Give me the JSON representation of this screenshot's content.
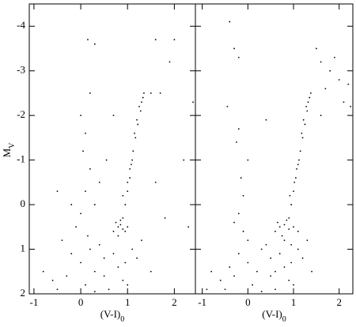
{
  "chart_data": [
    {
      "type": "scatter",
      "color": "#000000",
      "x_label": "(V-I)",
      "x_label_sub": "0",
      "y_label": "M",
      "y_label_sub": "V",
      "xlim": [
        -1.1,
        2.45
      ],
      "ylim": [
        2,
        -4.5
      ],
      "xticks": [
        -1,
        0,
        1,
        2
      ],
      "yticks": [
        -4,
        -3,
        -2,
        -1,
        0,
        1,
        2
      ],
      "show_ytick_labels": true,
      "x": [
        0.95,
        1.0,
        1.05,
        1.08,
        1.12,
        1.17,
        1.22,
        1.28,
        1.33,
        1.25,
        1.15,
        1.0,
        0.9,
        1.1,
        1.05,
        1.2,
        1.3,
        1.35,
        0.8,
        0.85,
        0.9,
        0.75,
        0.95,
        0.85,
        0.7,
        1.0,
        0.8,
        0.9,
        0.5,
        0.3,
        0.8,
        1.0,
        0.6,
        0.2,
        0.0,
        -0.3,
        -0.6,
        -0.8,
        0.4,
        1.2,
        1.5,
        1.1,
        0.9,
        0.1,
        -0.2,
        0.7,
        1.3,
        0.5,
        -0.5,
        0.3,
        0.95,
        0.0,
        0.1,
        -0.1,
        0.2,
        0.05,
        0.3,
        0.4,
        -0.2,
        0.15,
        -0.4,
        0.0,
        0.2,
        0.1,
        0.15,
        0.3,
        1.6,
        2.0,
        1.9,
        1.7,
        2.2,
        2.3,
        1.8,
        1.6,
        0.7,
        0.55,
        1.5,
        2.4,
        -0.5
      ],
      "y": [
        0.0,
        -0.3,
        -0.6,
        -0.9,
        -1.2,
        -1.5,
        -1.8,
        -2.1,
        -2.4,
        -2.2,
        -1.6,
        -0.5,
        -0.2,
        -1.0,
        -0.8,
        -1.9,
        -2.3,
        -2.5,
        0.5,
        0.45,
        0.55,
        0.4,
        0.6,
        0.35,
        0.6,
        0.5,
        0.7,
        0.3,
        1.2,
        1.5,
        1.4,
        1.8,
        1.9,
        1.0,
        1.3,
        1.6,
        1.7,
        1.5,
        0.9,
        1.2,
        1.5,
        1.0,
        1.7,
        1.8,
        1.1,
        1.1,
        0.8,
        1.6,
        1.9,
        1.95,
        1.3,
        0.2,
        -0.3,
        0.5,
        -0.8,
        -1.2,
        0.0,
        -0.5,
        0.0,
        0.7,
        0.8,
        -2.0,
        -2.5,
        -1.6,
        -3.7,
        -3.6,
        -3.7,
        -3.7,
        -3.2,
        -2.5,
        -1.0,
        0.5,
        0.3,
        -0.5,
        -2.0,
        -1.0,
        -2.5,
        -2.3,
        -0.3
      ]
    },
    {
      "type": "scatter",
      "color": "#000000",
      "x_label": "(V-I)",
      "x_label_sub": "0",
      "xlim": [
        -1.15,
        2.3
      ],
      "ylim": [
        2,
        -4.5
      ],
      "xticks": [
        -1,
        0,
        1,
        2
      ],
      "yticks": [
        -4,
        -3,
        -2,
        -1,
        0,
        1,
        2
      ],
      "show_ytick_labels": false,
      "x": [
        0.95,
        1.0,
        1.05,
        1.1,
        1.15,
        1.2,
        1.25,
        1.3,
        1.35,
        1.32,
        1.18,
        1.02,
        0.92,
        1.12,
        1.07,
        1.22,
        1.28,
        1.38,
        0.7,
        0.8,
        0.9,
        0.6,
        1.0,
        0.85,
        0.75,
        1.1,
        0.8,
        0.9,
        0.65,
        0.95,
        0.5,
        0.2,
        0.8,
        1.0,
        0.6,
        0.3,
        0.0,
        -0.3,
        -0.6,
        -0.8,
        0.4,
        1.2,
        1.4,
        1.1,
        0.9,
        0.1,
        -0.2,
        0.7,
        1.3,
        0.5,
        -0.5,
        0.3,
        0.95,
        -0.9,
        -0.4,
        0.0,
        0.6,
        -0.2,
        -0.1,
        -0.3,
        -0.15,
        0.0,
        -0.25,
        -0.2,
        -0.1,
        -0.4,
        -0.3,
        -0.2,
        -0.45,
        1.6,
        1.8,
        1.9,
        2.0,
        2.2,
        1.7,
        2.1,
        1.5,
        2.25,
        0.4,
        1.6
      ],
      "y": [
        0.0,
        -0.3,
        -0.6,
        -0.9,
        -1.2,
        -1.5,
        -1.8,
        -2.1,
        -2.4,
        -2.3,
        -1.6,
        -0.5,
        -0.2,
        -1.0,
        -0.8,
        -1.9,
        -2.2,
        -2.5,
        0.5,
        0.45,
        0.55,
        0.6,
        0.5,
        0.35,
        0.7,
        0.6,
        0.8,
        0.3,
        0.4,
        0.9,
        1.2,
        1.5,
        1.4,
        1.8,
        1.9,
        1.0,
        1.3,
        1.6,
        1.7,
        1.5,
        0.9,
        1.2,
        1.5,
        1.0,
        1.7,
        1.8,
        1.1,
        1.1,
        0.8,
        1.6,
        1.9,
        1.95,
        1.3,
        1.9,
        1.4,
        0.8,
        1.5,
        0.2,
        -0.2,
        0.4,
        -0.6,
        -1.0,
        -1.4,
        -1.7,
        0.6,
        -4.1,
        -3.5,
        -3.3,
        -2.2,
        -3.2,
        -3.0,
        -3.3,
        -2.8,
        -2.7,
        -2.6,
        -2.3,
        -3.5,
        -2.2,
        -1.9,
        -2.0
      ]
    }
  ]
}
